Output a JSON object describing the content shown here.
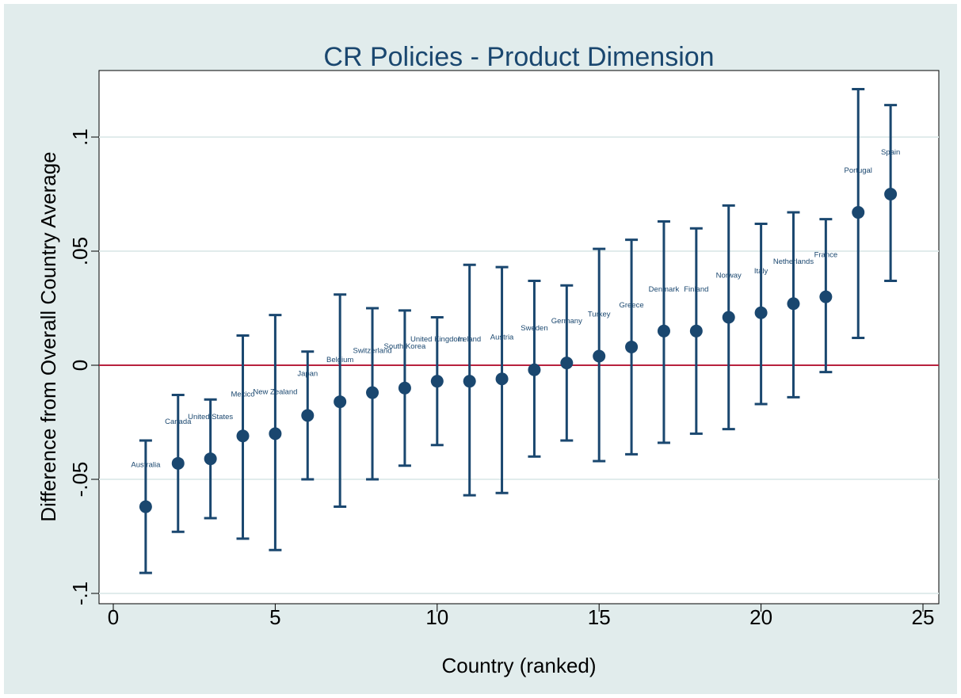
{
  "chart_data": {
    "type": "scatter",
    "title": "CR Policies - Product Dimension",
    "xlabel": "Country (ranked)",
    "ylabel": "Difference from Overall Country Average",
    "xlim": [
      0,
      25
    ],
    "ylim": [
      -0.1,
      0.1
    ],
    "x_ticks": [
      0,
      5,
      10,
      15,
      20,
      25
    ],
    "x_tick_labels": [
      "0",
      "5",
      "10",
      "15",
      "20",
      "25"
    ],
    "y_ticks": [
      -0.1,
      -0.05,
      0,
      0.05,
      0.1
    ],
    "y_tick_labels": [
      "-.1",
      "-.05",
      "0",
      ".05",
      ".1"
    ],
    "grid": "horizontal",
    "reference_line": {
      "y": 0,
      "color": "#b8213e"
    },
    "marker_color": "#1a476f",
    "background_color": "#e1ecec",
    "points": [
      {
        "x": 1,
        "label": "Australia",
        "y": -0.062,
        "lo": -0.091,
        "hi": -0.033
      },
      {
        "x": 2,
        "label": "Canada",
        "y": -0.043,
        "lo": -0.073,
        "hi": -0.013
      },
      {
        "x": 3,
        "label": "United States",
        "y": -0.041,
        "lo": -0.067,
        "hi": -0.015
      },
      {
        "x": 4,
        "label": "Mexico",
        "y": -0.031,
        "lo": -0.076,
        "hi": 0.013
      },
      {
        "x": 5,
        "label": "New Zealand",
        "y": -0.03,
        "lo": -0.081,
        "hi": 0.022
      },
      {
        "x": 6,
        "label": "Japan",
        "y": -0.022,
        "lo": -0.05,
        "hi": 0.006
      },
      {
        "x": 7,
        "label": "Belgium",
        "y": -0.016,
        "lo": -0.062,
        "hi": 0.031
      },
      {
        "x": 8,
        "label": "Switzerland",
        "y": -0.012,
        "lo": -0.05,
        "hi": 0.025
      },
      {
        "x": 9,
        "label": "South Korea",
        "y": -0.01,
        "lo": -0.044,
        "hi": 0.024
      },
      {
        "x": 10,
        "label": "United Kingdom",
        "y": -0.007,
        "lo": -0.035,
        "hi": 0.021
      },
      {
        "x": 11,
        "label": "Ireland",
        "y": -0.007,
        "lo": -0.057,
        "hi": 0.044
      },
      {
        "x": 12,
        "label": "Austria",
        "y": -0.006,
        "lo": -0.056,
        "hi": 0.043
      },
      {
        "x": 13,
        "label": "Sweden",
        "y": -0.002,
        "lo": -0.04,
        "hi": 0.037
      },
      {
        "x": 14,
        "label": "Germany",
        "y": 0.001,
        "lo": -0.033,
        "hi": 0.035
      },
      {
        "x": 15,
        "label": "Turkey",
        "y": 0.004,
        "lo": -0.042,
        "hi": 0.051
      },
      {
        "x": 16,
        "label": "Greece",
        "y": 0.008,
        "lo": -0.039,
        "hi": 0.055
      },
      {
        "x": 17,
        "label": "Denmark",
        "y": 0.015,
        "lo": -0.034,
        "hi": 0.063
      },
      {
        "x": 18,
        "label": "Finland",
        "y": 0.015,
        "lo": -0.03,
        "hi": 0.06
      },
      {
        "x": 19,
        "label": "Norway",
        "y": 0.021,
        "lo": -0.028,
        "hi": 0.07
      },
      {
        "x": 20,
        "label": "Italy",
        "y": 0.023,
        "lo": -0.017,
        "hi": 0.062
      },
      {
        "x": 21,
        "label": "Netherlands",
        "y": 0.027,
        "lo": -0.014,
        "hi": 0.067
      },
      {
        "x": 22,
        "label": "France",
        "y": 0.03,
        "lo": -0.003,
        "hi": 0.064
      },
      {
        "x": 23,
        "label": "Portugal",
        "y": 0.067,
        "lo": 0.012,
        "hi": 0.121
      },
      {
        "x": 24,
        "label": "Spain",
        "y": 0.075,
        "lo": 0.037,
        "hi": 0.114
      }
    ]
  }
}
